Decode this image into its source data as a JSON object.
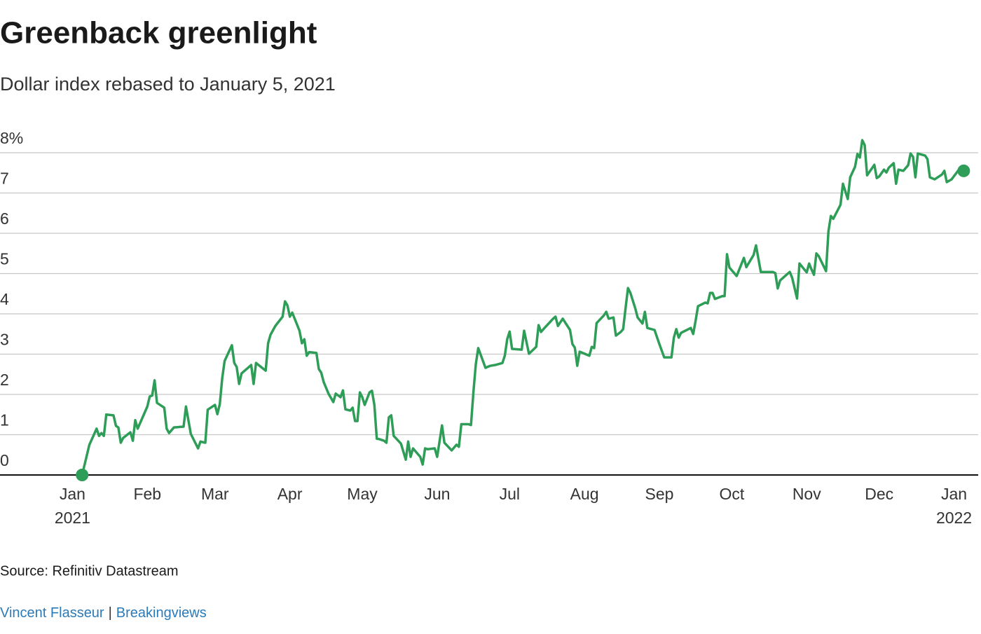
{
  "chart_data": {
    "type": "line",
    "title": "Greenback greenlight",
    "subtitle": "Dollar index rebased to January 5, 2021",
    "source": "Source: Refinitiv Datastream",
    "credit": [
      "Vincent Flasseur",
      "Breakingviews"
    ],
    "credit_separator": "|",
    "color": "#2e9d57",
    "grid": true,
    "end_markers": true,
    "xlim": [
      "2020-12-02",
      "2022-01-11"
    ],
    "xticks": [
      {
        "value": "2021-01-01",
        "label": "Jan"
      },
      {
        "value": "2021-02-01",
        "label": "Feb"
      },
      {
        "value": "2021-03-01",
        "label": "Mar"
      },
      {
        "value": "2021-04-01",
        "label": "Apr"
      },
      {
        "value": "2021-05-01",
        "label": "May"
      },
      {
        "value": "2021-06-01",
        "label": "Jun"
      },
      {
        "value": "2021-07-01",
        "label": "Jul"
      },
      {
        "value": "2021-08-01",
        "label": "Aug"
      },
      {
        "value": "2021-09-01",
        "label": "Sep"
      },
      {
        "value": "2021-10-01",
        "label": "Oct"
      },
      {
        "value": "2021-11-01",
        "label": "Nov"
      },
      {
        "value": "2021-12-01",
        "label": "Dec"
      },
      {
        "value": "2022-01-01",
        "label": "Jan"
      }
    ],
    "xtick_years": [
      {
        "value": "2021-01-01",
        "label": "2021"
      },
      {
        "value": "2022-01-01",
        "label": "2022"
      }
    ],
    "ylim": [
      0,
      8.4
    ],
    "yticks": [
      0,
      1,
      2,
      3,
      4,
      5,
      6,
      7,
      {
        "value": 8,
        "label": "8%"
      }
    ],
    "x": [
      "2021-01-05",
      "2021-01-08",
      "2021-01-11",
      "2021-01-12",
      "2021-01-13",
      "2021-01-14",
      "2021-01-15",
      "2021-01-18",
      "2021-01-19",
      "2021-01-20",
      "2021-01-21",
      "2021-01-22",
      "2021-01-25",
      "2021-01-26",
      "2021-01-27",
      "2021-01-28",
      "2021-02-01",
      "2021-02-02",
      "2021-02-03",
      "2021-02-04",
      "2021-02-05",
      "2021-02-08",
      "2021-02-09",
      "2021-02-10",
      "2021-02-12",
      "2021-02-16",
      "2021-02-17",
      "2021-02-19",
      "2021-02-22",
      "2021-02-23",
      "2021-02-25",
      "2021-02-26",
      "2021-03-01",
      "2021-03-02",
      "2021-03-03",
      "2021-03-04",
      "2021-03-05",
      "2021-03-08",
      "2021-03-09",
      "2021-03-10",
      "2021-03-11",
      "2021-03-12",
      "2021-03-16",
      "2021-03-17",
      "2021-03-18",
      "2021-03-22",
      "2021-03-23",
      "2021-03-24",
      "2021-03-26",
      "2021-03-29",
      "2021-03-30",
      "2021-03-31",
      "2021-04-01",
      "2021-04-02",
      "2021-04-05",
      "2021-04-06",
      "2021-04-07",
      "2021-04-08",
      "2021-04-09",
      "2021-04-12",
      "2021-04-13",
      "2021-04-14",
      "2021-04-15",
      "2021-04-17",
      "2021-04-19",
      "2021-04-20",
      "2021-04-22",
      "2021-04-23",
      "2021-04-24",
      "2021-04-26",
      "2021-04-27",
      "2021-04-28",
      "2021-04-29",
      "2021-04-30",
      "2021-05-01",
      "2021-05-02",
      "2021-05-04",
      "2021-05-05",
      "2021-05-06",
      "2021-05-07",
      "2021-05-08",
      "2021-05-10",
      "2021-05-11",
      "2021-05-12",
      "2021-05-13",
      "2021-05-14",
      "2021-05-17",
      "2021-05-19",
      "2021-05-20",
      "2021-05-21",
      "2021-05-22",
      "2021-05-24",
      "2021-05-25",
      "2021-05-26",
      "2021-05-27",
      "2021-05-28",
      "2021-05-31",
      "2021-06-01",
      "2021-06-03",
      "2021-06-04",
      "2021-06-07",
      "2021-06-09",
      "2021-06-10",
      "2021-06-11",
      "2021-06-14",
      "2021-06-15",
      "2021-06-16",
      "2021-06-17",
      "2021-06-18",
      "2021-06-21",
      "2021-06-23",
      "2021-06-25",
      "2021-06-28",
      "2021-06-29",
      "2021-06-30",
      "2021-07-01",
      "2021-07-02",
      "2021-07-06",
      "2021-07-07",
      "2021-07-09",
      "2021-07-12",
      "2021-07-13",
      "2021-07-14",
      "2021-07-15",
      "2021-07-19",
      "2021-07-20",
      "2021-07-21",
      "2021-07-22",
      "2021-07-23",
      "2021-07-26",
      "2021-07-27",
      "2021-07-28",
      "2021-07-29",
      "2021-07-30",
      "2021-08-03",
      "2021-08-04",
      "2021-08-05",
      "2021-08-06",
      "2021-08-09",
      "2021-08-10",
      "2021-08-11",
      "2021-08-13",
      "2021-08-14",
      "2021-08-16",
      "2021-08-17",
      "2021-08-18",
      "2021-08-19",
      "2021-08-20",
      "2021-08-22",
      "2021-08-23",
      "2021-08-25",
      "2021-08-26",
      "2021-08-27",
      "2021-08-30",
      "2021-09-01",
      "2021-09-03",
      "2021-09-06",
      "2021-09-07",
      "2021-09-08",
      "2021-09-09",
      "2021-09-10",
      "2021-09-14",
      "2021-09-15",
      "2021-09-16",
      "2021-09-17",
      "2021-09-20",
      "2021-09-21",
      "2021-09-22",
      "2021-09-23",
      "2021-09-24",
      "2021-09-27",
      "2021-09-28",
      "2021-09-29",
      "2021-09-30",
      "2021-10-03",
      "2021-10-06",
      "2021-10-07",
      "2021-10-10",
      "2021-10-11",
      "2021-10-13",
      "2021-10-18",
      "2021-10-19",
      "2021-10-20",
      "2021-10-21",
      "2021-10-24",
      "2021-10-25",
      "2021-10-26",
      "2021-10-28",
      "2021-10-29",
      "2021-11-01",
      "2021-11-02",
      "2021-11-03",
      "2021-11-04",
      "2021-11-05",
      "2021-11-06",
      "2021-11-09",
      "2021-11-10",
      "2021-11-11",
      "2021-11-12",
      "2021-11-15",
      "2021-11-16",
      "2021-11-18",
      "2021-11-19",
      "2021-11-21",
      "2021-11-22",
      "2021-11-23",
      "2021-11-24",
      "2021-11-25",
      "2021-11-26",
      "2021-11-29",
      "2021-11-30",
      "2021-12-01",
      "2021-12-03",
      "2021-12-04",
      "2021-12-05",
      "2021-12-07",
      "2021-12-08",
      "2021-12-09",
      "2021-12-11",
      "2021-12-13",
      "2021-12-14",
      "2021-12-15",
      "2021-12-16",
      "2021-12-17",
      "2021-12-20",
      "2021-12-21",
      "2021-12-22",
      "2021-12-24",
      "2021-12-27",
      "2021-12-28",
      "2021-12-29",
      "2021-12-31",
      "2022-01-03",
      "2022-01-05"
    ],
    "values": [
      0,
      0.75,
      1.15,
      0.97,
      1.04,
      0.97,
      1.5,
      1.48,
      1.22,
      1.18,
      0.8,
      0.92,
      1.06,
      0.85,
      1.36,
      1.15,
      1.7,
      1.95,
      1.97,
      2.35,
      1.79,
      1.67,
      1.15,
      1.04,
      1.18,
      1.2,
      1.7,
      1.02,
      0.66,
      0.83,
      0.8,
      1.62,
      1.74,
      1.51,
      1.76,
      2.4,
      2.83,
      3.22,
      2.78,
      2.68,
      2.26,
      2.52,
      2.73,
      2.26,
      2.78,
      2.59,
      3.27,
      3.48,
      3.7,
      3.93,
      4.31,
      4.21,
      3.93,
      4.03,
      3.58,
      3.27,
      3.37,
      2.96,
      3.05,
      3.03,
      2.63,
      2.54,
      2.31,
      2.02,
      1.81,
      2.02,
      1.93,
      2.1,
      1.63,
      1.6,
      1.67,
      1.34,
      1.34,
      2.05,
      1.93,
      1.74,
      2.05,
      2.09,
      1.74,
      0.9,
      0.89,
      0.85,
      0.8,
      1.43,
      1.48,
      0.97,
      0.78,
      0.38,
      0.83,
      0.45,
      0.66,
      0.52,
      0.45,
      0.26,
      0.66,
      0.64,
      0.66,
      0.45,
      1.23,
      0.8,
      0.61,
      0.75,
      0.7,
      1.26,
      1.26,
      1.24,
      2.05,
      2.75,
      3.15,
      2.66,
      2.71,
      2.73,
      2.78,
      2.96,
      3.37,
      3.56,
      3.13,
      3.11,
      3.58,
      3.01,
      3.18,
      3.72,
      3.55,
      3.62,
      3.88,
      3.93,
      3.7,
      3.79,
      3.88,
      3.6,
      3.25,
      3.16,
      2.71,
      3.06,
      2.96,
      3.18,
      3.15,
      3.77,
      3.96,
      4.05,
      3.88,
      3.91,
      3.46,
      3.55,
      3.62,
      4.14,
      4.64,
      4.52,
      4.14,
      3.91,
      3.76,
      4.05,
      3.65,
      3.6,
      3.25,
      2.92,
      2.92,
      3.41,
      3.62,
      3.41,
      3.53,
      3.65,
      3.5,
      3.83,
      4.19,
      4.28,
      4.26,
      4.52,
      4.52,
      4.37,
      4.44,
      4.44,
      5.48,
      5.15,
      4.94,
      5.39,
      5.16,
      5.46,
      5.7,
      5.04,
      5.04,
      5.01,
      4.63,
      4.83,
      4.99,
      5.04,
      4.89,
      4.38,
      5.25,
      5.03,
      5.25,
      5.1,
      4.97,
      5.5,
      5.43,
      5.06,
      6.05,
      6.43,
      6.36,
      6.71,
      7.23,
      6.85,
      7.39,
      7.65,
      7.97,
      7.88,
      8.31,
      8.19,
      7.44,
      7.7,
      7.37,
      7.41,
      7.58,
      7.51,
      7.63,
      7.74,
      7.23,
      7.58,
      7.55,
      7.69,
      7.98,
      7.9,
      7.39,
      7.98,
      7.93,
      7.84,
      7.39,
      7.34,
      7.46,
      7.55,
      7.27,
      7.34,
      7.58,
      7.55
    ]
  }
}
